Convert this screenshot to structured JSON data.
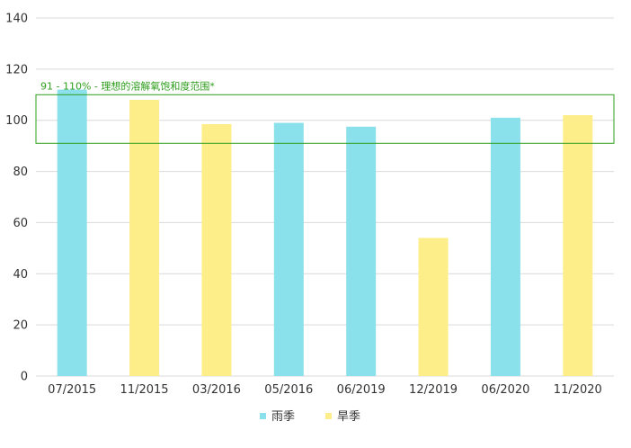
{
  "chart_data": {
    "type": "bar",
    "title": "",
    "xlabel": "",
    "ylabel": "",
    "categories": [
      "07/2015",
      "11/2015",
      "03/2016",
      "05/2016",
      "06/2019",
      "12/2019",
      "06/2020",
      "11/2020"
    ],
    "values": [
      112,
      108,
      98.5,
      99,
      97.5,
      54,
      101,
      102
    ],
    "season": [
      "rainy",
      "dry",
      "dry",
      "rainy",
      "rainy",
      "dry",
      "rainy",
      "dry"
    ],
    "ylim": [
      0,
      140
    ],
    "yticks": [
      0,
      20,
      40,
      60,
      80,
      100,
      120,
      140
    ],
    "grid": true,
    "reference_band": {
      "from": 91,
      "to": 110,
      "label": "91 - 110% - 理想的溶解氧饱和度范围*",
      "color": "#2e9e1c"
    },
    "series": [
      {
        "key": "rainy",
        "name": "雨季",
        "color": "#8ae1ec"
      },
      {
        "key": "dry",
        "name": "旱季",
        "color": "#fdee8a"
      }
    ],
    "legend_position": "bottom-center"
  }
}
